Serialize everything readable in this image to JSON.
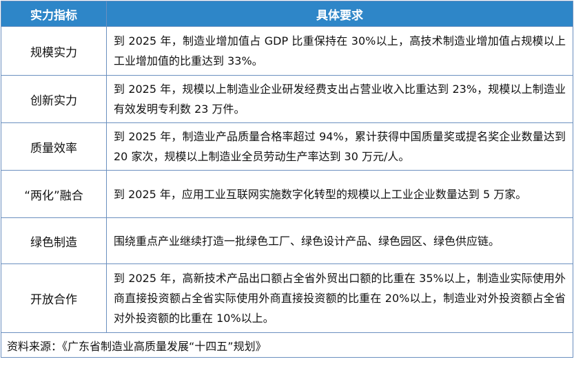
{
  "table": {
    "headers": [
      "实力指标",
      "具体要求"
    ],
    "rows": [
      {
        "indicator": "规模实力",
        "requirement": "到 2025 年，制造业增加值占 GDP 比重保持在 30%以上，高技术制造业增加值占规模以上工业增加值的比重达到 33%。"
      },
      {
        "indicator": "创新实力",
        "requirement": "到 2025 年，规模以上制造业企业研发经费支出占营业收入比重达到 23%，规模以上制造业有效发明专利数 23 万件。"
      },
      {
        "indicator": "质量效率",
        "requirement": "到 2025 年，制造业产品质量合格率超过 94%，累计获得中国质量奖或提名奖企业数量达到 20 家次，规模以上制造业全员劳动生产率达到 30 万元/人。"
      },
      {
        "indicator": "“两化”融合",
        "requirement": "到 2025 年，应用工业互联网实施数字化转型的规模以上工业企业数量达到 5 万家。"
      },
      {
        "indicator": "绿色制造",
        "requirement": "围绕重点产业继续打造一批绿色工厂、绿色设计产品、绿色园区、绿色供应链。"
      },
      {
        "indicator": "开放合作",
        "requirement": "到 2025 年，高新技术产品出口额占全省外贸出口额的比重在 35%以上，制造业实际使用外商直接投资额占全省实际使用外商直接投资额的比重在 20%以上，制造业对外投资额占全省对外投资额的比重在 10%以上。"
      }
    ],
    "source": "资料来源：《广东省制造业高质量发展“十四五”规划》"
  },
  "colors": {
    "header_bg": "#2e86c8",
    "header_text": "#ffffff",
    "border": "#6a8fbf"
  }
}
